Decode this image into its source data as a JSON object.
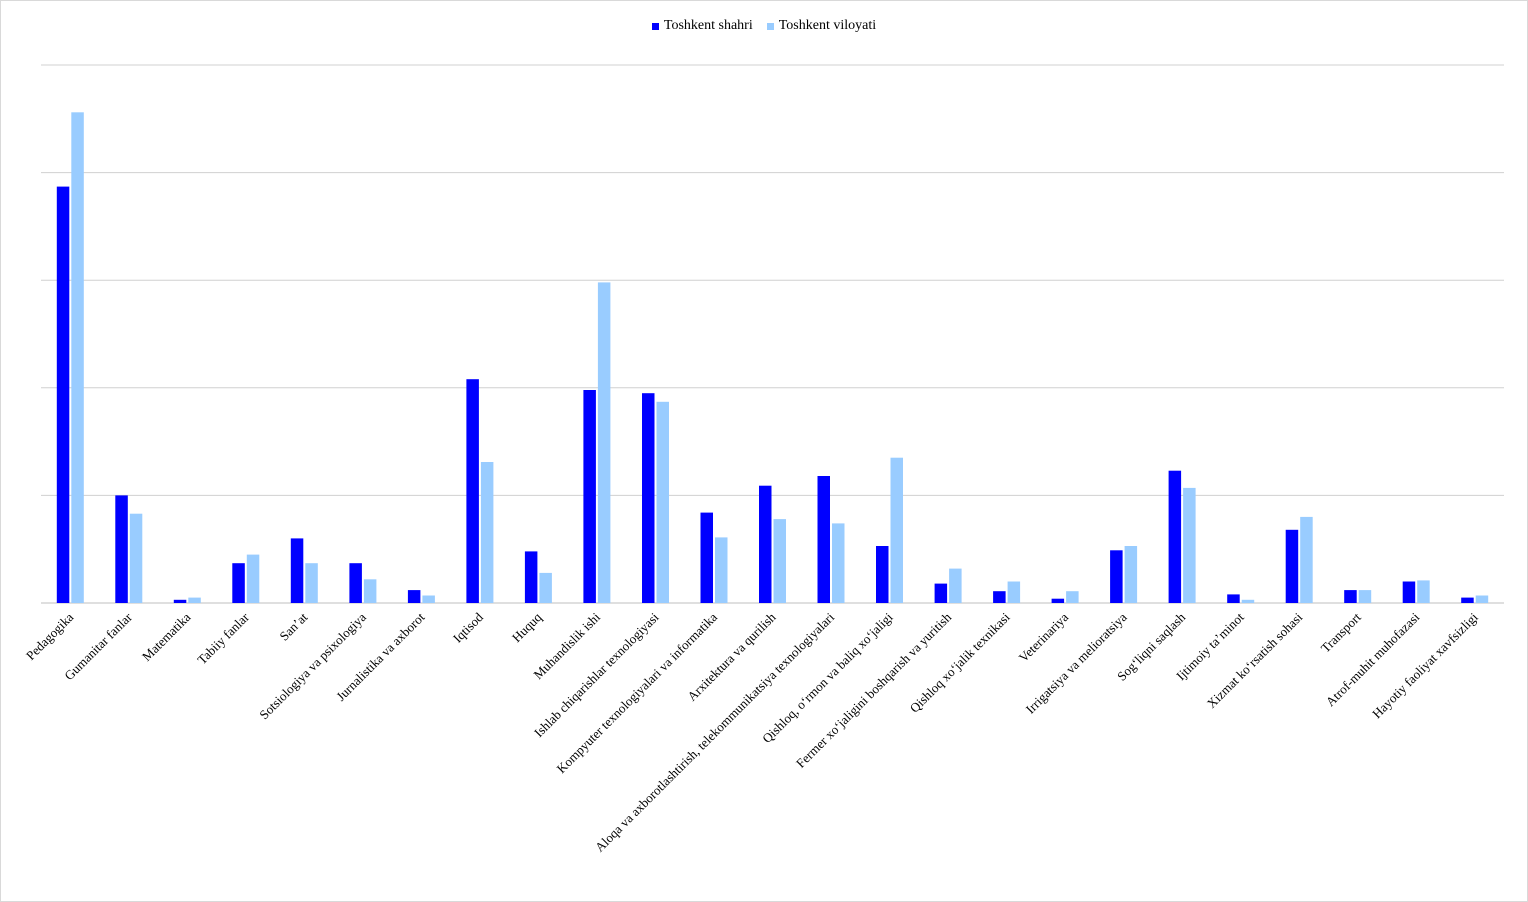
{
  "chart_data": {
    "type": "bar",
    "categories": [
      "Pedagogika",
      "Gumanitar fanlar",
      "Matematika",
      "Tabiiy fanlar",
      "San’at",
      "Sotsiologiya va psixologiya",
      "Jurnalistika va axborot",
      "Iqtisod",
      "Huquq",
      "Muhandislik ishi",
      "Ishlab chiqarishlar texnologiyasi",
      "Kompyuter texnologiyalari va informatika",
      "Arxitektura va qurilish",
      "Aloqa va axborotlashtirish, telekommunikatsiya texnologiyalari",
      "Qishloq, o‘rmon va baliq xo‘jaligi",
      "Fermer xo‘jaligini boshqarish va yuritish",
      "Qishloq xo‘jalik texnikasi",
      "Veterinariya",
      "Irrigatsiya va melioratsiya",
      "Sog‘liqni saqlash",
      "Ijtimoiy ta’minot",
      "Xizmat ko‘rsatish sohasi",
      "Transport",
      "Atrof-muhit muhofazasi",
      "Hayotiy faoliyat xavfsizligi"
    ],
    "series": [
      {
        "name": "Toshkent shahri",
        "color": "#0000ff",
        "values": [
          387,
          100,
          3,
          37,
          60,
          37,
          12,
          208,
          48,
          198,
          195,
          84,
          109,
          118,
          53,
          18,
          11,
          4,
          49,
          123,
          8,
          68,
          12,
          20,
          5
        ]
      },
      {
        "name": "Toshkent viloyati",
        "color": "#99ccff",
        "values": [
          456,
          83,
          5,
          45,
          37,
          22,
          7,
          131,
          28,
          298,
          187,
          61,
          78,
          74,
          135,
          32,
          20,
          11,
          53,
          107,
          3,
          80,
          12,
          21,
          7
        ]
      }
    ],
    "ylim": [
      0,
      500
    ],
    "y_gridlines": [
      100,
      200,
      300,
      400,
      500
    ],
    "y_tick_labels_shown": false,
    "grid": true,
    "legend_position": "top-center"
  }
}
